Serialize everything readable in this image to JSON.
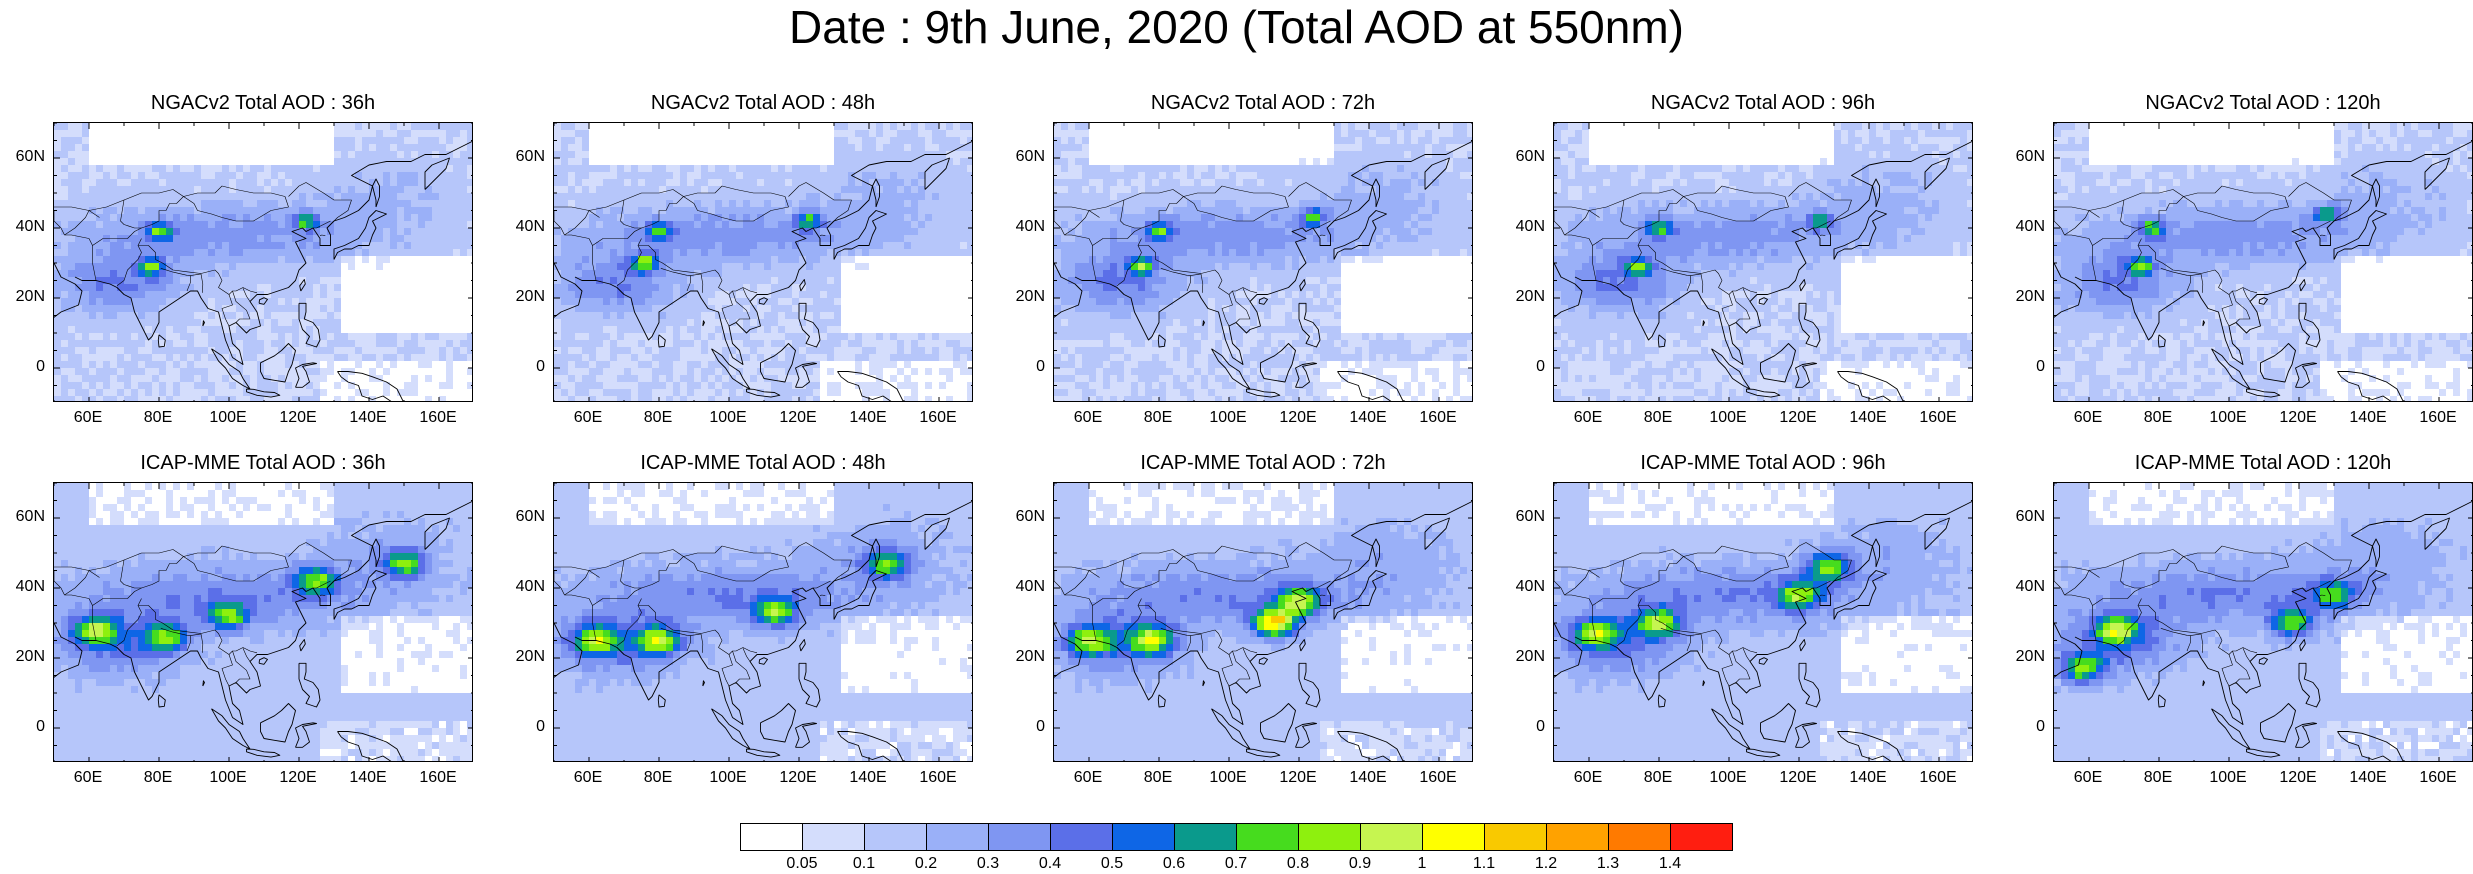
{
  "title": "Date : 9th June, 2020 (Total AOD at 550nm)",
  "rows": [
    {
      "model": "NGACv2",
      "panels": [
        {
          "title": "NGACv2 Total AOD : 36h",
          "lead_hours": 36,
          "hotspots": [
            {
              "lon": 78,
              "lat": 29,
              "aod": 0.8
            },
            {
              "lon": 80,
              "lat": 39,
              "aod": 0.8
            },
            {
              "lon": 122,
              "lat": 42,
              "aod": 0.75
            }
          ]
        },
        {
          "title": "NGACv2 Total AOD : 48h",
          "lead_hours": 48,
          "hotspots": [
            {
              "lon": 76,
              "lat": 30,
              "aod": 0.8
            },
            {
              "lon": 80,
              "lat": 39,
              "aod": 0.75
            },
            {
              "lon": 123,
              "lat": 42,
              "aod": 0.75
            }
          ]
        },
        {
          "title": "NGACv2 Total AOD : 72h",
          "lead_hours": 72,
          "hotspots": [
            {
              "lon": 75,
              "lat": 29,
              "aod": 0.8
            },
            {
              "lon": 80,
              "lat": 39,
              "aod": 0.75
            },
            {
              "lon": 124,
              "lat": 43,
              "aod": 0.75
            }
          ]
        },
        {
          "title": "NGACv2 Total AOD : 96h",
          "lead_hours": 96,
          "hotspots": [
            {
              "lon": 74,
              "lat": 29,
              "aod": 0.8
            },
            {
              "lon": 80,
              "lat": 40,
              "aod": 0.75
            },
            {
              "lon": 126,
              "lat": 42,
              "aod": 0.75
            }
          ]
        },
        {
          "title": "NGACv2 Total AOD : 120h",
          "lead_hours": 120,
          "hotspots": [
            {
              "lon": 75,
              "lat": 29,
              "aod": 0.8
            },
            {
              "lon": 78,
              "lat": 40,
              "aod": 0.75
            },
            {
              "lon": 128,
              "lat": 44,
              "aod": 0.75
            }
          ]
        }
      ]
    },
    {
      "model": "ICAP-MME",
      "panels": [
        {
          "title": "ICAP-MME Total AOD : 36h",
          "lead_hours": 36,
          "hotspots": [
            {
              "lon": 62,
              "lat": 28,
              "aod": 0.85
            },
            {
              "lon": 82,
              "lat": 26,
              "aod": 0.8
            },
            {
              "lon": 100,
              "lat": 32,
              "aod": 0.8
            },
            {
              "lon": 125,
              "lat": 42,
              "aod": 0.8
            },
            {
              "lon": 150,
              "lat": 47,
              "aod": 0.8
            }
          ]
        },
        {
          "title": "ICAP-MME Total AOD : 48h",
          "lead_hours": 48,
          "hotspots": [
            {
              "lon": 62,
              "lat": 25,
              "aod": 0.85
            },
            {
              "lon": 80,
              "lat": 25,
              "aod": 0.9
            },
            {
              "lon": 113,
              "lat": 33,
              "aod": 0.85
            },
            {
              "lon": 145,
              "lat": 47,
              "aod": 0.8
            }
          ]
        },
        {
          "title": "ICAP-MME Total AOD : 72h",
          "lead_hours": 72,
          "hotspots": [
            {
              "lon": 60,
              "lat": 25,
              "aod": 0.85
            },
            {
              "lon": 78,
              "lat": 25,
              "aod": 0.9
            },
            {
              "lon": 120,
              "lat": 36,
              "aod": 0.9
            },
            {
              "lon": 113,
              "lat": 30,
              "aod": 1.15
            }
          ]
        },
        {
          "title": "ICAP-MME Total AOD : 96h",
          "lead_hours": 96,
          "hotspots": [
            {
              "lon": 62,
              "lat": 27,
              "aod": 0.85
            },
            {
              "lon": 80,
              "lat": 30,
              "aod": 0.85
            },
            {
              "lon": 120,
              "lat": 38,
              "aod": 0.85
            },
            {
              "lon": 128,
              "lat": 46,
              "aod": 0.85
            }
          ]
        },
        {
          "title": "ICAP-MME Total AOD : 120h",
          "lead_hours": 120,
          "hotspots": [
            {
              "lon": 58,
              "lat": 17,
              "aod": 0.85
            },
            {
              "lon": 68,
              "lat": 28,
              "aod": 0.85
            },
            {
              "lon": 118,
              "lat": 30,
              "aod": 0.85
            },
            {
              "lon": 130,
              "lat": 38,
              "aod": 0.75
            }
          ]
        }
      ]
    }
  ],
  "map_extent": {
    "lon_min": 50,
    "lon_max": 170,
    "lat_min": -10,
    "lat_max": 70
  },
  "lat_ticks": [
    "60N",
    "40N",
    "20N",
    "0"
  ],
  "lat_tick_values": [
    60,
    40,
    20,
    0
  ],
  "lon_ticks": [
    "60E",
    "80E",
    "100E",
    "120E",
    "140E",
    "160E"
  ],
  "lon_tick_values": [
    60,
    80,
    100,
    120,
    140,
    160
  ],
  "colorbar": {
    "labels": [
      "0.05",
      "0.1",
      "0.2",
      "0.3",
      "0.4",
      "0.5",
      "0.6",
      "0.7",
      "0.8",
      "0.9",
      "1",
      "1.1",
      "1.2",
      "1.3",
      "1.4"
    ],
    "colors": [
      "#ffffff",
      "#d4ddfc",
      "#b6c6fa",
      "#9ab0f8",
      "#7f96f2",
      "#5b6fe8",
      "#0e66e6",
      "#0a9a8c",
      "#46dc1e",
      "#8ef00e",
      "#c6f550",
      "#ffff00",
      "#f9c900",
      "#ffa200",
      "#ff7a00",
      "#ff1e10"
    ]
  }
}
